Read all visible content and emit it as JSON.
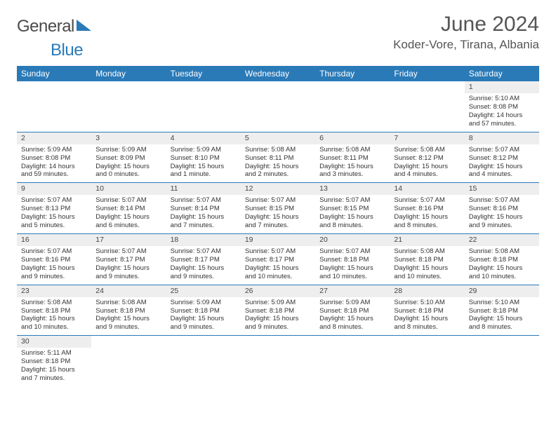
{
  "logo": {
    "text_general": "General",
    "text_blue": "Blue"
  },
  "header": {
    "month_title": "June 2024",
    "location": "Koder-Vore, Tirana, Albania"
  },
  "colors": {
    "header_bg": "#2a7ab8",
    "shade_bg": "#eeeeee",
    "border": "#2a7ab8",
    "text": "#333333"
  },
  "days_of_week": [
    "Sunday",
    "Monday",
    "Tuesday",
    "Wednesday",
    "Thursday",
    "Friday",
    "Saturday"
  ],
  "weeks": [
    [
      null,
      null,
      null,
      null,
      null,
      null,
      {
        "n": "1",
        "sr": "Sunrise: 5:10 AM",
        "ss": "Sunset: 8:08 PM",
        "dl": "Daylight: 14 hours and 57 minutes."
      }
    ],
    [
      {
        "n": "2",
        "sr": "Sunrise: 5:09 AM",
        "ss": "Sunset: 8:08 PM",
        "dl": "Daylight: 14 hours and 59 minutes."
      },
      {
        "n": "3",
        "sr": "Sunrise: 5:09 AM",
        "ss": "Sunset: 8:09 PM",
        "dl": "Daylight: 15 hours and 0 minutes."
      },
      {
        "n": "4",
        "sr": "Sunrise: 5:09 AM",
        "ss": "Sunset: 8:10 PM",
        "dl": "Daylight: 15 hours and 1 minute."
      },
      {
        "n": "5",
        "sr": "Sunrise: 5:08 AM",
        "ss": "Sunset: 8:11 PM",
        "dl": "Daylight: 15 hours and 2 minutes."
      },
      {
        "n": "6",
        "sr": "Sunrise: 5:08 AM",
        "ss": "Sunset: 8:11 PM",
        "dl": "Daylight: 15 hours and 3 minutes."
      },
      {
        "n": "7",
        "sr": "Sunrise: 5:08 AM",
        "ss": "Sunset: 8:12 PM",
        "dl": "Daylight: 15 hours and 4 minutes."
      },
      {
        "n": "8",
        "sr": "Sunrise: 5:07 AM",
        "ss": "Sunset: 8:12 PM",
        "dl": "Daylight: 15 hours and 4 minutes."
      }
    ],
    [
      {
        "n": "9",
        "sr": "Sunrise: 5:07 AM",
        "ss": "Sunset: 8:13 PM",
        "dl": "Daylight: 15 hours and 5 minutes."
      },
      {
        "n": "10",
        "sr": "Sunrise: 5:07 AM",
        "ss": "Sunset: 8:14 PM",
        "dl": "Daylight: 15 hours and 6 minutes."
      },
      {
        "n": "11",
        "sr": "Sunrise: 5:07 AM",
        "ss": "Sunset: 8:14 PM",
        "dl": "Daylight: 15 hours and 7 minutes."
      },
      {
        "n": "12",
        "sr": "Sunrise: 5:07 AM",
        "ss": "Sunset: 8:15 PM",
        "dl": "Daylight: 15 hours and 7 minutes."
      },
      {
        "n": "13",
        "sr": "Sunrise: 5:07 AM",
        "ss": "Sunset: 8:15 PM",
        "dl": "Daylight: 15 hours and 8 minutes."
      },
      {
        "n": "14",
        "sr": "Sunrise: 5:07 AM",
        "ss": "Sunset: 8:16 PM",
        "dl": "Daylight: 15 hours and 8 minutes."
      },
      {
        "n": "15",
        "sr": "Sunrise: 5:07 AM",
        "ss": "Sunset: 8:16 PM",
        "dl": "Daylight: 15 hours and 9 minutes."
      }
    ],
    [
      {
        "n": "16",
        "sr": "Sunrise: 5:07 AM",
        "ss": "Sunset: 8:16 PM",
        "dl": "Daylight: 15 hours and 9 minutes."
      },
      {
        "n": "17",
        "sr": "Sunrise: 5:07 AM",
        "ss": "Sunset: 8:17 PM",
        "dl": "Daylight: 15 hours and 9 minutes."
      },
      {
        "n": "18",
        "sr": "Sunrise: 5:07 AM",
        "ss": "Sunset: 8:17 PM",
        "dl": "Daylight: 15 hours and 9 minutes."
      },
      {
        "n": "19",
        "sr": "Sunrise: 5:07 AM",
        "ss": "Sunset: 8:17 PM",
        "dl": "Daylight: 15 hours and 10 minutes."
      },
      {
        "n": "20",
        "sr": "Sunrise: 5:07 AM",
        "ss": "Sunset: 8:18 PM",
        "dl": "Daylight: 15 hours and 10 minutes."
      },
      {
        "n": "21",
        "sr": "Sunrise: 5:08 AM",
        "ss": "Sunset: 8:18 PM",
        "dl": "Daylight: 15 hours and 10 minutes."
      },
      {
        "n": "22",
        "sr": "Sunrise: 5:08 AM",
        "ss": "Sunset: 8:18 PM",
        "dl": "Daylight: 15 hours and 10 minutes."
      }
    ],
    [
      {
        "n": "23",
        "sr": "Sunrise: 5:08 AM",
        "ss": "Sunset: 8:18 PM",
        "dl": "Daylight: 15 hours and 10 minutes."
      },
      {
        "n": "24",
        "sr": "Sunrise: 5:08 AM",
        "ss": "Sunset: 8:18 PM",
        "dl": "Daylight: 15 hours and 9 minutes."
      },
      {
        "n": "25",
        "sr": "Sunrise: 5:09 AM",
        "ss": "Sunset: 8:18 PM",
        "dl": "Daylight: 15 hours and 9 minutes."
      },
      {
        "n": "26",
        "sr": "Sunrise: 5:09 AM",
        "ss": "Sunset: 8:18 PM",
        "dl": "Daylight: 15 hours and 9 minutes."
      },
      {
        "n": "27",
        "sr": "Sunrise: 5:09 AM",
        "ss": "Sunset: 8:18 PM",
        "dl": "Daylight: 15 hours and 8 minutes."
      },
      {
        "n": "28",
        "sr": "Sunrise: 5:10 AM",
        "ss": "Sunset: 8:18 PM",
        "dl": "Daylight: 15 hours and 8 minutes."
      },
      {
        "n": "29",
        "sr": "Sunrise: 5:10 AM",
        "ss": "Sunset: 8:18 PM",
        "dl": "Daylight: 15 hours and 8 minutes."
      }
    ],
    [
      {
        "n": "30",
        "sr": "Sunrise: 5:11 AM",
        "ss": "Sunset: 8:18 PM",
        "dl": "Daylight: 15 hours and 7 minutes."
      },
      null,
      null,
      null,
      null,
      null,
      null
    ]
  ]
}
